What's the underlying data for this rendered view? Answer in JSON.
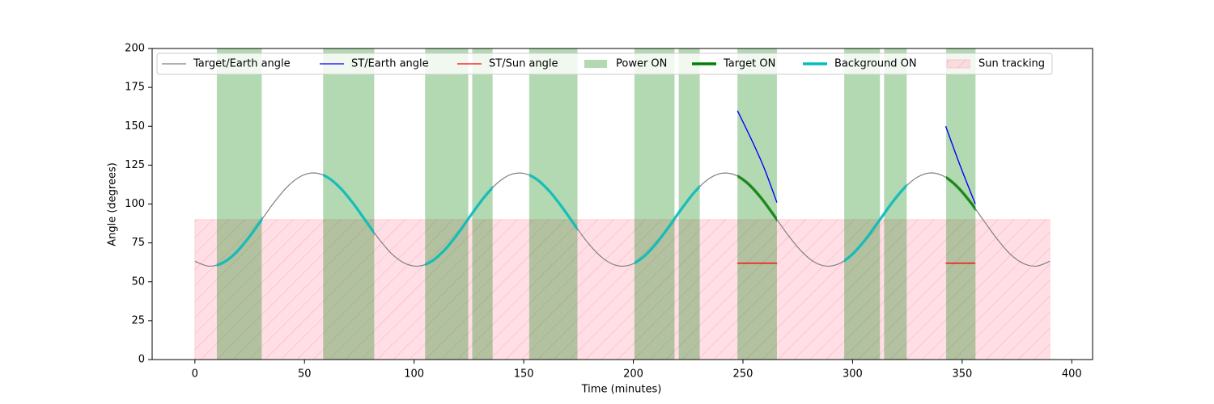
{
  "chart_data": {
    "type": "line",
    "xlabel": "Time (minutes)",
    "ylabel": "Angle (degrees)",
    "xlim": [
      -19.5,
      409.5
    ],
    "ylim": [
      0,
      200
    ],
    "xticks": [
      0,
      50,
      100,
      150,
      200,
      250,
      300,
      350,
      400
    ],
    "yticks": [
      0,
      25,
      50,
      75,
      100,
      125,
      150,
      175,
      200
    ],
    "legend": "upper left",
    "series": [
      {
        "name": "Target/Earth angle",
        "color": "#808080",
        "kind": "line",
        "x": [
          0,
          6,
          12,
          18,
          24,
          30,
          36,
          42,
          48,
          54,
          60,
          66,
          72,
          78,
          84,
          90,
          96,
          102,
          108,
          114,
          120,
          126,
          132,
          138,
          144,
          150,
          156,
          162,
          168,
          174,
          180,
          186,
          192,
          198,
          204,
          210,
          216,
          222,
          228,
          234,
          240,
          246,
          252,
          258,
          264,
          270,
          276,
          282,
          288,
          294,
          300,
          306,
          312,
          318,
          324,
          330,
          336,
          342,
          348,
          354,
          360,
          366,
          372,
          378,
          384,
          390
        ],
        "values": [
          63.2,
          60.1,
          61.7,
          67.7,
          77.4,
          89.0,
          100.8,
          110.9,
          117.6,
          120.0,
          117.6,
          110.8,
          100.8,
          89.0,
          77.4,
          67.7,
          61.7,
          60.1,
          63.2,
          70.6,
          81.1,
          93.0,
          104.4,
          113.5,
          118.9,
          119.7,
          115.8,
          107.8,
          97.0,
          85.0,
          73.8,
          65.3,
          60.6,
          60.6,
          65.3,
          73.9,
          85.0,
          96.9,
          107.8,
          115.8,
          119.7,
          118.9,
          113.5,
          104.4,
          93.0,
          81.1,
          70.6,
          63.2,
          60.1,
          61.7,
          67.8,
          77.4,
          89.0,
          100.8,
          110.9,
          117.6,
          120.0,
          117.6,
          110.8,
          100.8,
          89.0,
          77.4,
          67.7,
          61.7,
          60.1,
          63.2
        ]
      },
      {
        "name": "ST/Earth angle",
        "color": "#0000ff",
        "kind": "line",
        "x": [
          247.5,
          252,
          256,
          260,
          265.5,
          300,
          342.5,
          349,
          356
        ],
        "values": [
          160,
          147,
          135,
          122,
          101,
          null,
          150,
          125,
          100
        ]
      },
      {
        "name": "ST/Sun angle",
        "color": "#ff0000",
        "kind": "line",
        "x": [
          247.5,
          265.5,
          300,
          342.5,
          356
        ],
        "values": [
          62,
          62,
          null,
          62,
          62
        ]
      },
      {
        "name": "Power ON",
        "color": "#008000",
        "kind": "span",
        "intervals": [
          [
            10,
            30.5
          ],
          [
            58.5,
            81.8
          ],
          [
            105,
            124.7
          ],
          [
            126.5,
            135.8
          ],
          [
            152.5,
            174.5
          ],
          [
            200.5,
            218.8
          ],
          [
            220.7,
            230.3
          ],
          [
            247.5,
            265.5
          ],
          [
            296.2,
            312.5
          ],
          [
            314.4,
            324.7
          ],
          [
            342.7,
            356.1
          ]
        ]
      },
      {
        "name": "Target ON",
        "color": "#008000",
        "kind": "highlight",
        "intervals": [
          [
            247.5,
            265.5
          ],
          [
            342.7,
            356.1
          ]
        ]
      },
      {
        "name": "Background ON",
        "color": "#00bfbf",
        "kind": "highlight",
        "intervals": [
          [
            10,
            30.8
          ],
          [
            58.5,
            81.8
          ],
          [
            105,
            135.8
          ],
          [
            152.5,
            174.5
          ],
          [
            200.5,
            230.3
          ],
          [
            296.2,
            324.7
          ]
        ]
      },
      {
        "name": "Sun tracking",
        "color": "#ffc0cb",
        "kind": "region",
        "x": [
          0,
          390
        ],
        "y": [
          0,
          90
        ]
      }
    ]
  }
}
